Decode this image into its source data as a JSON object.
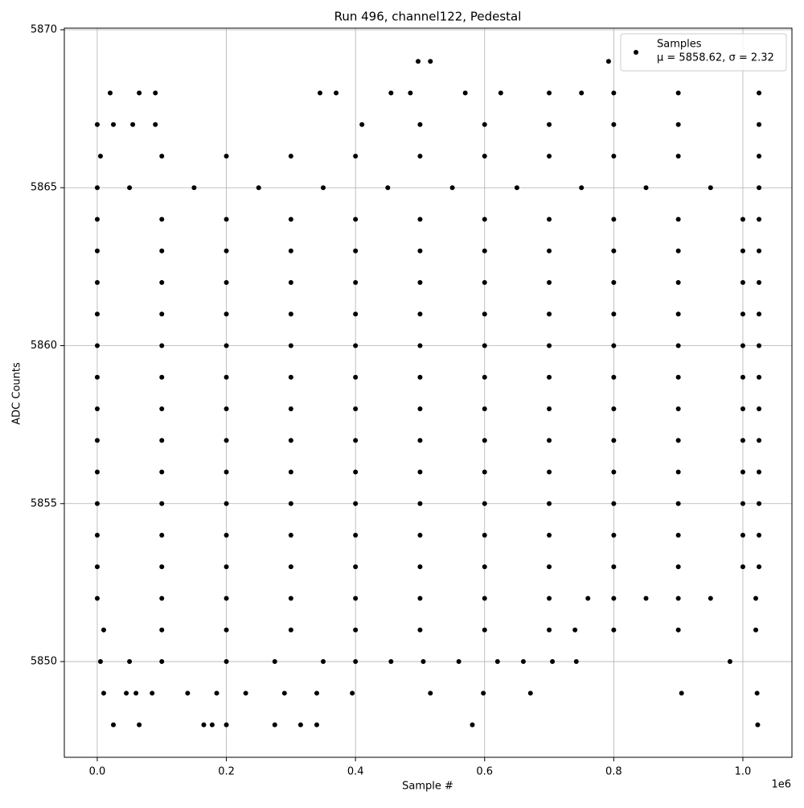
{
  "chart_data": {
    "type": "scatter",
    "title": "Run 496, channel122, Pedestal",
    "x_label": "Sample #",
    "y_label": "ADC Counts",
    "x_offset_label": "1e6",
    "xlim": [
      -51000,
      1076000
    ],
    "ylim": [
      5846.97,
      5870.05
    ],
    "xticks": [
      {
        "value": 0,
        "label": "0.0"
      },
      {
        "value": 200000,
        "label": "0.2"
      },
      {
        "value": 400000,
        "label": "0.4"
      },
      {
        "value": 600000,
        "label": "0.6"
      },
      {
        "value": 800000,
        "label": "0.8"
      },
      {
        "value": 1000000,
        "label": "1.0"
      }
    ],
    "yticks": [
      5850,
      5855,
      5860,
      5865,
      5870
    ],
    "grid": true,
    "legend_position": "upper-right",
    "legend_note": "μ = 5858.62, σ = 2.32",
    "series": [
      {
        "name": "Samples",
        "color": "#000000",
        "x": [
          0,
          100000,
          200000,
          300000,
          400000,
          500000,
          600000,
          700000,
          800000,
          900000,
          1000000,
          1025000,
          0,
          100000,
          200000,
          300000,
          400000,
          500000,
          600000,
          700000,
          800000,
          900000,
          1000000,
          1025000,
          0,
          100000,
          200000,
          300000,
          400000,
          500000,
          600000,
          700000,
          800000,
          900000,
          1000000,
          1025000,
          0,
          100000,
          200000,
          300000,
          400000,
          500000,
          600000,
          700000,
          800000,
          900000,
          1000000,
          1025000,
          0,
          100000,
          200000,
          300000,
          400000,
          500000,
          600000,
          700000,
          800000,
          900000,
          1000000,
          1025000,
          0,
          100000,
          200000,
          300000,
          400000,
          500000,
          600000,
          700000,
          800000,
          900000,
          1000000,
          1025000,
          0,
          100000,
          200000,
          300000,
          400000,
          500000,
          600000,
          700000,
          800000,
          900000,
          1000000,
          1025000,
          0,
          100000,
          200000,
          300000,
          400000,
          500000,
          600000,
          700000,
          800000,
          900000,
          1000000,
          1025000,
          0,
          100000,
          200000,
          300000,
          400000,
          500000,
          600000,
          700000,
          800000,
          900000,
          1000000,
          1025000,
          0,
          100000,
          200000,
          300000,
          400000,
          500000,
          600000,
          700000,
          800000,
          900000,
          1000000,
          1025000,
          0,
          100000,
          200000,
          300000,
          400000,
          500000,
          600000,
          700000,
          800000,
          900000,
          1000000,
          1025000,
          0,
          100000,
          200000,
          300000,
          400000,
          500000,
          600000,
          700000,
          800000,
          900000,
          1000000,
          1025000,
          0,
          100000,
          200000,
          300000,
          400000,
          500000,
          600000,
          700000,
          760000,
          800000,
          850000,
          900000,
          950000,
          1020000,
          0,
          50000,
          150000,
          250000,
          350000,
          450000,
          550000,
          650000,
          750000,
          850000,
          950000,
          1025000,
          5000,
          100000,
          200000,
          300000,
          400000,
          500000,
          600000,
          700000,
          800000,
          900000,
          1025000,
          10000,
          100000,
          200000,
          300000,
          400000,
          500000,
          600000,
          700000,
          740000,
          800000,
          900000,
          1020000,
          0,
          25000,
          55000,
          90000,
          410000,
          500000,
          600000,
          700000,
          800000,
          900000,
          1025000,
          20000,
          65000,
          90000,
          345000,
          370000,
          455000,
          485000,
          570000,
          625000,
          700000,
          750000,
          800000,
          900000,
          1025000,
          497000,
          516000,
          792000,
          5000,
          50000,
          100000,
          200000,
          275000,
          350000,
          400000,
          455000,
          505000,
          560000,
          620000,
          660000,
          705000,
          742000,
          980000,
          10000,
          45000,
          60000,
          85000,
          140000,
          185000,
          230000,
          290000,
          340000,
          395000,
          516000,
          598000,
          671000,
          905000,
          1022000,
          25000,
          65000,
          165000,
          178000,
          200000,
          275000,
          315000,
          340000,
          581000,
          1023000
        ],
        "values": [
          5853,
          5853,
          5853,
          5853,
          5853,
          5853,
          5853,
          5853,
          5853,
          5853,
          5853,
          5853,
          5854,
          5854,
          5854,
          5854,
          5854,
          5854,
          5854,
          5854,
          5854,
          5854,
          5854,
          5854,
          5855,
          5855,
          5855,
          5855,
          5855,
          5855,
          5855,
          5855,
          5855,
          5855,
          5855,
          5855,
          5856,
          5856,
          5856,
          5856,
          5856,
          5856,
          5856,
          5856,
          5856,
          5856,
          5856,
          5856,
          5857,
          5857,
          5857,
          5857,
          5857,
          5857,
          5857,
          5857,
          5857,
          5857,
          5857,
          5857,
          5858,
          5858,
          5858,
          5858,
          5858,
          5858,
          5858,
          5858,
          5858,
          5858,
          5858,
          5858,
          5859,
          5859,
          5859,
          5859,
          5859,
          5859,
          5859,
          5859,
          5859,
          5859,
          5859,
          5859,
          5860,
          5860,
          5860,
          5860,
          5860,
          5860,
          5860,
          5860,
          5860,
          5860,
          5860,
          5860,
          5861,
          5861,
          5861,
          5861,
          5861,
          5861,
          5861,
          5861,
          5861,
          5861,
          5861,
          5861,
          5862,
          5862,
          5862,
          5862,
          5862,
          5862,
          5862,
          5862,
          5862,
          5862,
          5862,
          5862,
          5863,
          5863,
          5863,
          5863,
          5863,
          5863,
          5863,
          5863,
          5863,
          5863,
          5863,
          5863,
          5864,
          5864,
          5864,
          5864,
          5864,
          5864,
          5864,
          5864,
          5864,
          5864,
          5864,
          5864,
          5852,
          5852,
          5852,
          5852,
          5852,
          5852,
          5852,
          5852,
          5852,
          5852,
          5852,
          5852,
          5852,
          5852,
          5865,
          5865,
          5865,
          5865,
          5865,
          5865,
          5865,
          5865,
          5865,
          5865,
          5865,
          5865,
          5866,
          5866,
          5866,
          5866,
          5866,
          5866,
          5866,
          5866,
          5866,
          5866,
          5866,
          5851,
          5851,
          5851,
          5851,
          5851,
          5851,
          5851,
          5851,
          5851,
          5851,
          5851,
          5851,
          5867,
          5867,
          5867,
          5867,
          5867,
          5867,
          5867,
          5867,
          5867,
          5867,
          5867,
          5868,
          5868,
          5868,
          5868,
          5868,
          5868,
          5868,
          5868,
          5868,
          5868,
          5868,
          5868,
          5868,
          5868,
          5869,
          5869,
          5869,
          5850,
          5850,
          5850,
          5850,
          5850,
          5850,
          5850,
          5850,
          5850,
          5850,
          5850,
          5850,
          5850,
          5850,
          5850,
          5849,
          5849,
          5849,
          5849,
          5849,
          5849,
          5849,
          5849,
          5849,
          5849,
          5849,
          5849,
          5849,
          5849,
          5849,
          5848,
          5848,
          5848,
          5848,
          5848,
          5848,
          5848,
          5848,
          5848,
          5848
        ]
      }
    ]
  }
}
